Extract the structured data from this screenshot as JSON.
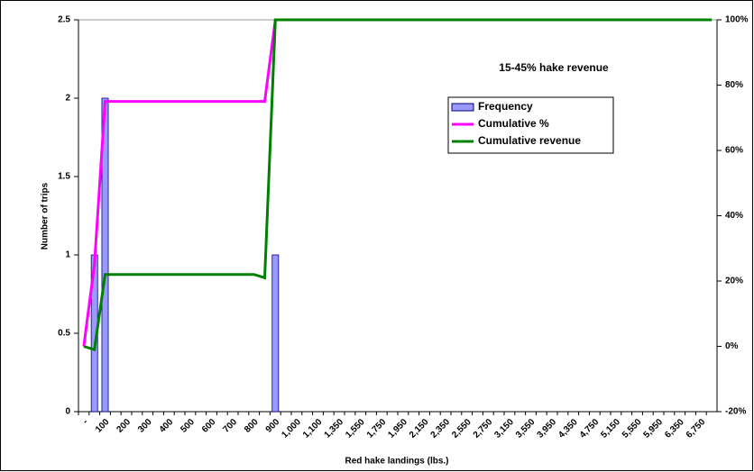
{
  "chart_data": {
    "type": "bar",
    "annotation": "15-45% hake revenue",
    "xlabel": "Red hake landings (lbs.)",
    "ylabel": "Number of trips",
    "categories": [
      "-",
      null,
      "100",
      null,
      "200",
      null,
      "300",
      null,
      "400",
      null,
      "500",
      null,
      "600",
      null,
      "700",
      null,
      "800",
      null,
      "900",
      null,
      "1,000",
      null,
      "1,100",
      null,
      "1,350",
      null,
      "1,550",
      null,
      "1,750",
      null,
      "1,950",
      null,
      "2,150",
      null,
      "2,350",
      null,
      "2,550",
      null,
      "2,750",
      null,
      "3,150",
      null,
      "3,550",
      null,
      "3,950",
      null,
      "4,350",
      null,
      "4,750",
      null,
      "5,150",
      null,
      "5,550",
      null,
      "5,950",
      null,
      "6,350",
      null,
      "6,750",
      null
    ],
    "series": [
      {
        "name": "Frequency",
        "type": "bar",
        "color": "#9999ff",
        "values": [
          0,
          1,
          2,
          0,
          0,
          0,
          0,
          0,
          0,
          0,
          0,
          0,
          0,
          0,
          0,
          0,
          0,
          0,
          1,
          0,
          0,
          0,
          0,
          0,
          0,
          0,
          0,
          0,
          0,
          0,
          0,
          0,
          0,
          0,
          0,
          0,
          0,
          0,
          0,
          0,
          0,
          0,
          0,
          0,
          0,
          0,
          0,
          0,
          0,
          0,
          0,
          0,
          0,
          0,
          0,
          0,
          0,
          0,
          0,
          0
        ]
      },
      {
        "name": "Cumulative %",
        "type": "line",
        "axis": "y2",
        "color": "#ff00ff",
        "values": [
          0,
          25,
          75,
          75,
          75,
          75,
          75,
          75,
          75,
          75,
          75,
          75,
          75,
          75,
          75,
          75,
          75,
          75,
          100,
          100,
          100,
          100,
          100,
          100,
          100,
          100,
          100,
          100,
          100,
          100,
          100,
          100,
          100,
          100,
          100,
          100,
          100,
          100,
          100,
          100,
          100,
          100,
          100,
          100,
          100,
          100,
          100,
          100,
          100,
          100,
          100,
          100,
          100,
          100,
          100,
          100,
          100,
          100,
          100,
          100
        ]
      },
      {
        "name": "Cumulative revenue",
        "type": "line",
        "axis": "y2",
        "color": "#008000",
        "values": [
          0,
          -1,
          22,
          22,
          22,
          22,
          22,
          22,
          22,
          22,
          22,
          22,
          22,
          22,
          22,
          22,
          22,
          21,
          100,
          100,
          100,
          100,
          100,
          100,
          100,
          100,
          100,
          100,
          100,
          100,
          100,
          100,
          100,
          100,
          100,
          100,
          100,
          100,
          100,
          100,
          100,
          100,
          100,
          100,
          100,
          100,
          100,
          100,
          100,
          100,
          100,
          100,
          100,
          100,
          100,
          100,
          100,
          100,
          100,
          100
        ]
      }
    ],
    "ylim": [
      0,
      2.5
    ],
    "yticks": [
      0,
      0.5,
      1,
      1.5,
      2,
      2.5
    ],
    "y2lim": [
      -20,
      100
    ],
    "y2ticks": [
      {
        "value": -20,
        "label": "-20%"
      },
      {
        "value": 0,
        "label": "0%"
      },
      {
        "value": 20,
        "label": "20%"
      },
      {
        "value": 40,
        "label": "40%"
      },
      {
        "value": 60,
        "label": "60%"
      },
      {
        "value": 80,
        "label": "80%"
      },
      {
        "value": 100,
        "label": "100%"
      }
    ],
    "legend": "upper right"
  }
}
